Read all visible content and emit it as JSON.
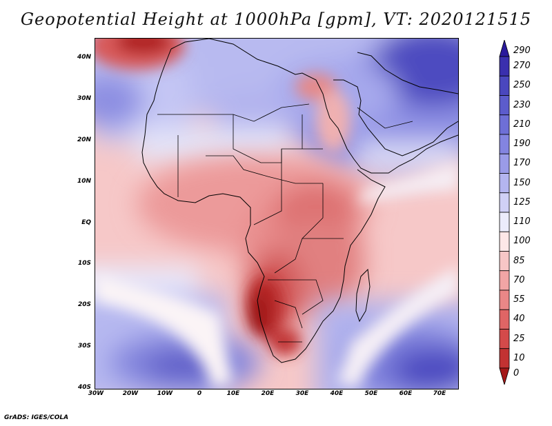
{
  "title": "Geopotential Height at 1000hPa [gpm], VT: 2020121515",
  "credit": "GrADS: IGES/COLA",
  "map": {
    "variable": "Geopotential Height",
    "level": "1000hPa",
    "units": "gpm",
    "valid_time": "2020121515",
    "lon_range": [
      -30,
      75
    ],
    "lat_range": [
      -40,
      45
    ],
    "lat_ticks": [
      {
        "value": 40,
        "label": "40N"
      },
      {
        "value": 30,
        "label": "30N"
      },
      {
        "value": 20,
        "label": "20N"
      },
      {
        "value": 10,
        "label": "10N"
      },
      {
        "value": 0,
        "label": "EQ"
      },
      {
        "value": -10,
        "label": "10S"
      },
      {
        "value": -20,
        "label": "20S"
      },
      {
        "value": -30,
        "label": "30S"
      },
      {
        "value": -40,
        "label": "40S"
      }
    ],
    "lon_ticks": [
      {
        "value": -30,
        "label": "30W"
      },
      {
        "value": -20,
        "label": "20W"
      },
      {
        "value": -10,
        "label": "10W"
      },
      {
        "value": 0,
        "label": "0"
      },
      {
        "value": 10,
        "label": "10E"
      },
      {
        "value": 20,
        "label": "20E"
      },
      {
        "value": 30,
        "label": "30E"
      },
      {
        "value": 40,
        "label": "40E"
      },
      {
        "value": 50,
        "label": "50E"
      },
      {
        "value": 60,
        "label": "60E"
      },
      {
        "value": 70,
        "label": "70E"
      }
    ]
  },
  "colorbar": {
    "levels": [
      {
        "label": "290",
        "color": "#2a1a9c"
      },
      {
        "label": "270",
        "color": "#3a2fae"
      },
      {
        "label": "250",
        "color": "#4a47be"
      },
      {
        "label": "230",
        "color": "#5c5ccc"
      },
      {
        "label": "210",
        "color": "#6e6fd6"
      },
      {
        "label": "190",
        "color": "#8384e0"
      },
      {
        "label": "170",
        "color": "#9a9be8"
      },
      {
        "label": "150",
        "color": "#b4b5f0"
      },
      {
        "label": "125",
        "color": "#d0d0f6"
      },
      {
        "label": "110",
        "color": "#ececfb"
      },
      {
        "label": "100",
        "color": "#fde7e7"
      },
      {
        "label": "85",
        "color": "#f7c6c6"
      },
      {
        "label": "70",
        "color": "#f1a5a5"
      },
      {
        "label": "55",
        "color": "#ea8787"
      },
      {
        "label": "40",
        "color": "#df6565"
      },
      {
        "label": "25",
        "color": "#d44a4a"
      },
      {
        "label": "10",
        "color": "#c23232"
      },
      {
        "label": "0",
        "color": "#a41818"
      }
    ]
  }
}
